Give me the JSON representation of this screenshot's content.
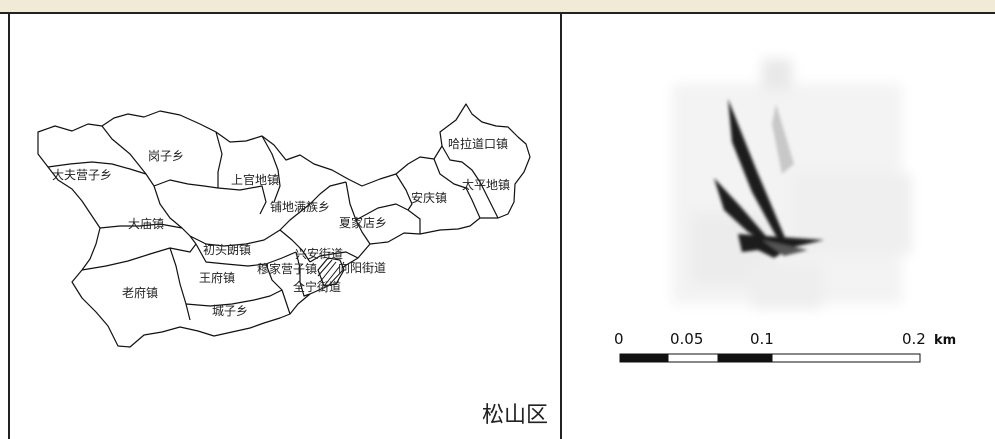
{
  "overview_map": {
    "district_label": "松山区",
    "towns": [
      {
        "name": "哈拉道口镇"
      },
      {
        "name": "岗子乡"
      },
      {
        "name": "大夫营子乡"
      },
      {
        "name": "上官地镇"
      },
      {
        "name": "太平地镇"
      },
      {
        "name": "安庆镇"
      },
      {
        "name": "铺地满族乡"
      },
      {
        "name": "夏家店乡"
      },
      {
        "name": "大庙镇"
      },
      {
        "name": "初头朗镇"
      },
      {
        "name": "兴安街道"
      },
      {
        "name": "穆家营子镇"
      },
      {
        "name": "向阳街道"
      },
      {
        "name": "王府镇"
      },
      {
        "name": "全宁街道"
      },
      {
        "name": "老府镇"
      },
      {
        "name": "城子乡"
      }
    ]
  },
  "detail_map": {
    "scale_bar": {
      "ticks": [
        "0",
        "0.05",
        "0.1",
        "0.2"
      ],
      "unit": "km"
    }
  }
}
